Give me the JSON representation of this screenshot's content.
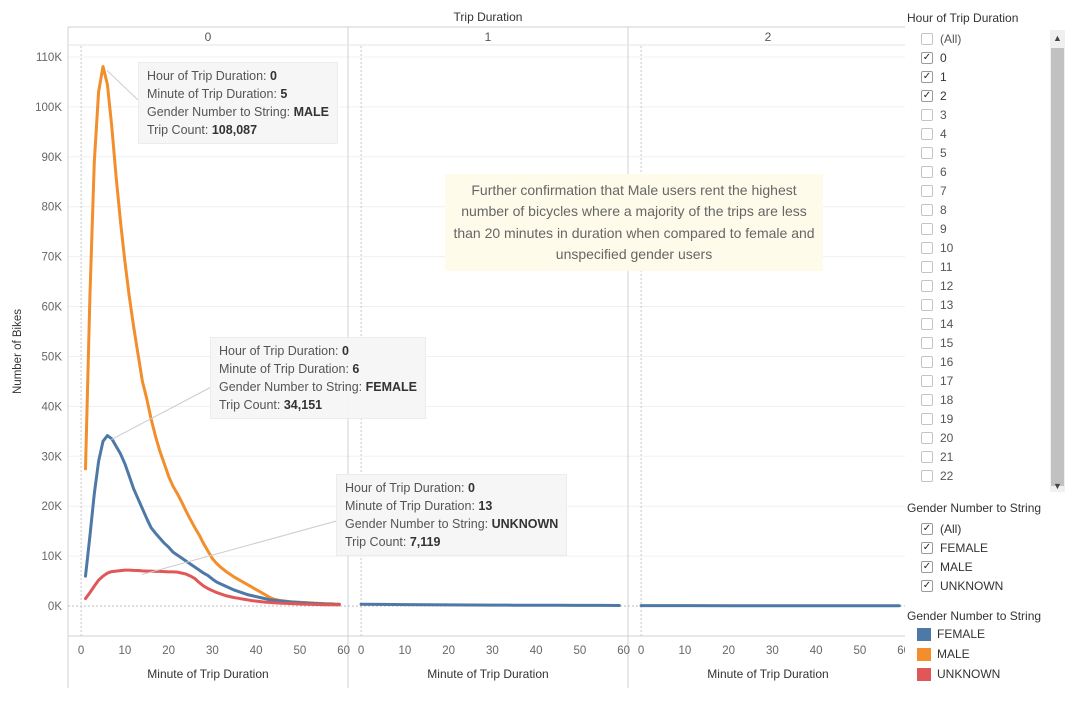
{
  "chart_data": {
    "type": "line",
    "title": "Trip Duration",
    "ylabel": "Number of Bikes",
    "xlabel": "Minute of Trip Duration",
    "ylim": [
      -6000,
      116000
    ],
    "xlim": [
      -3,
      61
    ],
    "yticks": [
      0,
      10000,
      20000,
      30000,
      40000,
      50000,
      60000,
      70000,
      80000,
      90000,
      100000,
      110000
    ],
    "ytick_labels": [
      "0K",
      "10K",
      "20K",
      "30K",
      "40K",
      "50K",
      "60K",
      "70K",
      "80K",
      "90K",
      "100K",
      "110K"
    ],
    "xticks": [
      0,
      10,
      20,
      30,
      40,
      50,
      60
    ],
    "xtick_labels": [
      "0",
      "10",
      "20",
      "30",
      "40",
      "50",
      "60"
    ],
    "panels": [
      {
        "label": "0",
        "series": [
          {
            "name": "MALE",
            "color": "#f28e2b",
            "x": [
              1,
              2,
              3,
              4,
              5,
              6,
              7,
              8,
              9,
              10,
              11,
              12,
              13,
              14,
              15,
              16,
              17,
              18,
              19,
              20,
              21,
              22,
              23,
              24,
              25,
              26,
              27,
              28,
              29,
              30,
              31,
              32,
              33,
              34,
              35,
              36,
              37,
              38,
              39,
              40,
              41,
              42,
              43,
              44,
              45,
              46,
              47,
              48,
              49,
              50,
              51,
              52,
              53,
              54,
              55,
              56,
              57,
              58,
              59
            ],
            "y": [
              27500,
              62000,
              89000,
              103000,
              108087,
              104500,
              96000,
              86000,
              77000,
              69000,
              62000,
              56000,
              50500,
              45000,
              41500,
              37500,
              34000,
              31000,
              28500,
              26000,
              24000,
              22500,
              20800,
              19000,
              17300,
              15700,
              14200,
              12500,
              11000,
              9500,
              8500,
              7700,
              7000,
              6400,
              5800,
              5300,
              4800,
              4300,
              3800,
              3300,
              2800,
              2300,
              1800,
              1400,
              1200,
              1050,
              950,
              880,
              820,
              760,
              700,
              650,
              600,
              560,
              520,
              480,
              450,
              420,
              400
            ]
          },
          {
            "name": "FEMALE",
            "color": "#4e79a7",
            "x": [
              1,
              2,
              3,
              4,
              5,
              6,
              7,
              8,
              9,
              10,
              11,
              12,
              13,
              14,
              15,
              16,
              17,
              18,
              19,
              20,
              21,
              22,
              23,
              24,
              25,
              26,
              27,
              28,
              29,
              30,
              31,
              32,
              33,
              34,
              35,
              36,
              37,
              38,
              39,
              40,
              41,
              42,
              43,
              44,
              45,
              46,
              47,
              48,
              49,
              50,
              51,
              52,
              53,
              54,
              55,
              56,
              57,
              58,
              59
            ],
            "y": [
              6000,
              14000,
              22500,
              29000,
              33000,
              34151,
              33500,
              32000,
              30500,
              28500,
              26000,
              23500,
              21500,
              19500,
              17500,
              15700,
              14600,
              13600,
              12600,
              11800,
              10800,
              10200,
              9600,
              9000,
              8400,
              7800,
              7200,
              6600,
              6100,
              5400,
              4800,
              4400,
              4000,
              3600,
              3200,
              2900,
              2600,
              2300,
              2100,
              1900,
              1700,
              1500,
              1300,
              1200,
              1100,
              1000,
              900,
              820,
              760,
              700,
              650,
              600,
              550,
              500,
              460,
              420,
              390,
              360,
              330
            ]
          },
          {
            "name": "UNKNOWN",
            "color": "#e15759",
            "x": [
              1,
              2,
              3,
              4,
              5,
              6,
              7,
              8,
              9,
              10,
              11,
              12,
              13,
              14,
              15,
              16,
              17,
              18,
              19,
              20,
              21,
              22,
              23,
              24,
              25,
              26,
              27,
              28,
              29,
              30,
              31,
              32,
              33,
              34,
              35,
              36,
              37,
              38,
              39,
              40,
              41,
              42,
              43,
              44,
              45,
              46,
              47,
              48,
              49,
              50,
              51,
              52,
              53,
              54,
              55,
              56,
              57,
              58,
              59
            ],
            "y": [
              1500,
              2700,
              4000,
              5200,
              6000,
              6600,
              6900,
              7000,
              7100,
              7200,
              7200,
              7150,
              7119,
              7050,
              7000,
              7000,
              6950,
              6950,
              6900,
              6850,
              6850,
              6800,
              6600,
              6400,
              6000,
              5500,
              4700,
              4000,
              3500,
              3100,
              2700,
              2400,
              2100,
              1900,
              1700,
              1550,
              1400,
              1250,
              1100,
              1000,
              900,
              800,
              730,
              670,
              620,
              570,
              530,
              490,
              450,
              420,
              390,
              360,
              340,
              320,
              300,
              280,
              260,
              250,
              240
            ]
          }
        ]
      },
      {
        "label": "1",
        "series": [
          {
            "name": "FEMALE",
            "color": "#4e79a7",
            "x": [
              0,
              5,
              10,
              15,
              20,
              25,
              30,
              35,
              40,
              45,
              50,
              55,
              59
            ],
            "y": [
              380,
              330,
              290,
              260,
              230,
              210,
              190,
              170,
              160,
              150,
              140,
              130,
              120
            ]
          }
        ]
      },
      {
        "label": "2",
        "series": [
          {
            "name": "FEMALE",
            "color": "#4e79a7",
            "x": [
              0,
              10,
              20,
              30,
              40,
              50,
              59
            ],
            "y": [
              90,
              80,
              75,
              70,
              65,
              60,
              55
            ]
          }
        ]
      }
    ],
    "tooltips": [
      {
        "hour_label": "Hour of Trip Duration:",
        "hour": "0",
        "minute_label": "Minute of Trip Duration:",
        "minute": "5",
        "gender_label": "Gender Number to String:",
        "gender": "MALE",
        "count_label": "Trip Count:",
        "count": "108,087",
        "point_x": 5,
        "point_y": 108087
      },
      {
        "hour_label": "Hour of Trip Duration:",
        "hour": "0",
        "minute_label": "Minute of Trip Duration:",
        "minute": "6",
        "gender_label": "Gender Number to String:",
        "gender": "FEMALE",
        "count_label": "Trip Count:",
        "count": "34,151",
        "point_x": 6,
        "point_y": 34151
      },
      {
        "hour_label": "Hour of Trip Duration:",
        "hour": "0",
        "minute_label": "Minute of Trip Duration:",
        "minute": "13",
        "gender_label": "Gender Number to String:",
        "gender": "UNKNOWN",
        "count_label": "Trip Count:",
        "count": "7,119",
        "point_x": 13,
        "point_y": 7119
      }
    ],
    "annotation": "Further confirmation that Male users rent the highest number of bicycles where a majority of the trips are less than 20 minutes in duration when compared to female and unspecified gender users"
  },
  "filters": {
    "hour": {
      "title": "Hour of Trip Duration",
      "items": [
        {
          "label": "(All)",
          "checked": false
        },
        {
          "label": "0",
          "checked": true
        },
        {
          "label": "1",
          "checked": true
        },
        {
          "label": "2",
          "checked": true
        },
        {
          "label": "3",
          "checked": false
        },
        {
          "label": "4",
          "checked": false
        },
        {
          "label": "5",
          "checked": false
        },
        {
          "label": "6",
          "checked": false
        },
        {
          "label": "7",
          "checked": false
        },
        {
          "label": "8",
          "checked": false
        },
        {
          "label": "9",
          "checked": false
        },
        {
          "label": "10",
          "checked": false
        },
        {
          "label": "11",
          "checked": false
        },
        {
          "label": "12",
          "checked": false
        },
        {
          "label": "13",
          "checked": false
        },
        {
          "label": "14",
          "checked": false
        },
        {
          "label": "15",
          "checked": false
        },
        {
          "label": "16",
          "checked": false
        },
        {
          "label": "17",
          "checked": false
        },
        {
          "label": "18",
          "checked": false
        },
        {
          "label": "19",
          "checked": false
        },
        {
          "label": "20",
          "checked": false
        },
        {
          "label": "21",
          "checked": false
        },
        {
          "label": "22",
          "checked": false
        }
      ]
    },
    "gender": {
      "title": "Gender Number to String",
      "items": [
        {
          "label": "(All)",
          "checked": true
        },
        {
          "label": "FEMALE",
          "checked": true
        },
        {
          "label": "MALE",
          "checked": true
        },
        {
          "label": "UNKNOWN",
          "checked": true
        }
      ]
    }
  },
  "legend": {
    "title": "Gender Number to String",
    "items": [
      {
        "label": "FEMALE",
        "color": "#4e79a7"
      },
      {
        "label": "MALE",
        "color": "#f28e2b"
      },
      {
        "label": "UNKNOWN",
        "color": "#e15759"
      }
    ]
  }
}
